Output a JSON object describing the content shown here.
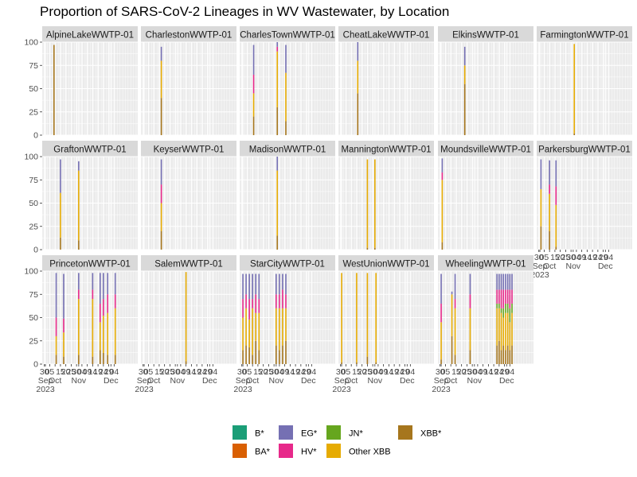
{
  "chart_data": {
    "type": "bar",
    "title": "Proportion of SARS-CoV-2 Lineages in WV Wastewater, by Location",
    "stacked": true,
    "faceted": true,
    "ylim": [
      0,
      100
    ],
    "y_ticks": [
      0,
      25,
      50,
      75,
      100
    ],
    "x_range": [
      "2023-09-28",
      "2023-12-26"
    ],
    "x_tick_labels": [
      {
        "date": "2023-09-30",
        "label": "30"
      },
      {
        "date": "2023-10-01",
        "label": "Sep\n2023"
      },
      {
        "date": "2023-10-05",
        "label": "05"
      },
      {
        "date": "2023-10-10",
        "label": "Oct"
      },
      {
        "date": "2023-10-15",
        "label": "15"
      },
      {
        "date": "2023-10-20",
        "label": "20"
      },
      {
        "date": "2023-10-25",
        "label": "25"
      },
      {
        "date": "2023-10-30",
        "label": "30"
      },
      {
        "date": "2023-11-01",
        "label": "Nov"
      },
      {
        "date": "2023-11-04",
        "label": "04"
      },
      {
        "date": "2023-11-09",
        "label": "09"
      },
      {
        "date": "2023-11-14",
        "label": "14"
      },
      {
        "date": "2023-11-19",
        "label": "19"
      },
      {
        "date": "2023-11-24",
        "label": "24"
      },
      {
        "date": "2023-11-29",
        "label": "29"
      },
      {
        "date": "2023-12-01",
        "label": "Dec"
      },
      {
        "date": "2023-12-04",
        "label": "04"
      }
    ],
    "legend_position": "bottom",
    "legend": [
      {
        "name": "B*",
        "color": "#1b9e77"
      },
      {
        "name": "BA*",
        "color": "#d95f02"
      },
      {
        "name": "EG*",
        "color": "#7570b3"
      },
      {
        "name": "HV*",
        "color": "#e7298a"
      },
      {
        "name": "JN*",
        "color": "#66a61e"
      },
      {
        "name": "Other XBB",
        "color": "#e6ab02"
      },
      {
        "name": "XBB*",
        "color": "#a6761d"
      }
    ],
    "facets": [
      {
        "name": "AlpineLakeWWTP-01",
        "bars": [
          {
            "date": "2023-10-09",
            "values": {
              "XBB*": 97
            }
          }
        ]
      },
      {
        "name": "CharlestonWWTP-01",
        "bars": [
          {
            "date": "2023-10-17",
            "values": {
              "XBB*": 40,
              "Other XBB": 40,
              "EG*": 15
            }
          }
        ]
      },
      {
        "name": "CharlesTownWWTP-01",
        "bars": [
          {
            "date": "2023-10-11",
            "values": {
              "XBB*": 20,
              "Other XBB": 25,
              "HV*": 20,
              "EG*": 32
            }
          },
          {
            "date": "2023-11-02",
            "values": {
              "XBB*": 30,
              "Other XBB": 60,
              "HV*": 5,
              "EG*": 5
            }
          },
          {
            "date": "2023-11-10",
            "values": {
              "XBB*": 15,
              "Other XBB": 52,
              "EG*": 30
            }
          }
        ]
      },
      {
        "name": "CheatLakeWWTP-01",
        "bars": [
          {
            "date": "2023-10-16",
            "values": {
              "XBB*": 45,
              "Other XBB": 35,
              "EG*": 20
            }
          }
        ]
      },
      {
        "name": "ElkinsWWTP-01",
        "bars": [
          {
            "date": "2023-10-23",
            "values": {
              "XBB*": 55,
              "Other XBB": 20,
              "EG*": 20
            }
          }
        ]
      },
      {
        "name": "FarmingtonWWTP-01",
        "bars": [
          {
            "date": "2023-11-02",
            "values": {
              "Other XBB": 96,
              "XBB*": 2
            }
          }
        ]
      },
      {
        "name": "GraftonWWTP-01",
        "bars": [
          {
            "date": "2023-10-15",
            "values": {
              "XBB*": 13,
              "Other XBB": 48,
              "EG*": 36
            }
          },
          {
            "date": "2023-11-01",
            "values": {
              "XBB*": 10,
              "Other XBB": 75,
              "EG*": 10
            }
          }
        ]
      },
      {
        "name": "KeyserWWTP-01",
        "bars": [
          {
            "date": "2023-10-17",
            "values": {
              "XBB*": 20,
              "Other XBB": 30,
              "HV*": 20,
              "EG*": 27
            }
          }
        ]
      },
      {
        "name": "MadisonWWTP-01",
        "bars": [
          {
            "date": "2023-11-02",
            "values": {
              "XBB*": 15,
              "Other XBB": 70,
              "EG*": 15
            }
          }
        ]
      },
      {
        "name": "ManningtonWWTP-01",
        "bars": [
          {
            "date": "2023-10-25",
            "values": {
              "Other XBB": 95,
              "XBB*": 2
            }
          },
          {
            "date": "2023-11-01",
            "values": {
              "Other XBB": 95,
              "XBB*": 2
            }
          }
        ]
      },
      {
        "name": "MoundsvilleWWTP-01",
        "bars": [
          {
            "date": "2023-10-02",
            "values": {
              "XBB*": 8,
              "Other XBB": 67,
              "HV*": 8,
              "EG*": 15
            }
          }
        ]
      },
      {
        "name": "ParkersburgWWTP-01",
        "bars": [
          {
            "date": "2023-10-02",
            "values": {
              "XBB*": 25,
              "Other XBB": 40,
              "EG*": 32
            }
          },
          {
            "date": "2023-10-10",
            "values": {
              "XBB*": 20,
              "Other XBB": 40,
              "HV*": 10,
              "EG*": 26
            }
          },
          {
            "date": "2023-10-16",
            "values": {
              "XBB*": 3,
              "Other XBB": 45,
              "HV*": 20,
              "EG*": 28
            }
          }
        ]
      },
      {
        "name": "PrincetonWWTP-01",
        "bars": [
          {
            "date": "2023-10-11",
            "values": {
              "XBB*": 10,
              "Other XBB": 20,
              "HV*": 20,
              "EG*": 48
            }
          },
          {
            "date": "2023-10-18",
            "values": {
              "XBB*": 8,
              "Other XBB": 26,
              "HV*": 15,
              "EG*": 48
            }
          },
          {
            "date": "2023-11-01",
            "values": {
              "XBB*": 10,
              "Other XBB": 60,
              "HV*": 10,
              "EG*": 18
            }
          },
          {
            "date": "2023-11-14",
            "values": {
              "XBB*": 8,
              "Other XBB": 62,
              "HV*": 10,
              "EG*": 18
            }
          },
          {
            "date": "2023-11-21",
            "values": {
              "XBB*": 15,
              "Other XBB": 30,
              "HV*": 20,
              "EG*": 33
            }
          },
          {
            "date": "2023-11-24",
            "values": {
              "XBB*": 12,
              "Other XBB": 40,
              "HV*": 18,
              "EG*": 28
            }
          },
          {
            "date": "2023-11-28",
            "values": {
              "XBB*": 10,
              "Other XBB": 45,
              "HV*": 20,
              "EG*": 23
            }
          },
          {
            "date": "2023-12-05",
            "values": {
              "XBB*": 10,
              "Other XBB": 50,
              "HV*": 15,
              "EG*": 23
            }
          }
        ]
      },
      {
        "name": "SalemWWTP-01",
        "bars": [
          {
            "date": "2023-11-09",
            "values": {
              "Other XBB": 96,
              "XBB*": 3
            }
          }
        ]
      },
      {
        "name": "StarCityWWTP-01",
        "bars": [
          {
            "date": "2023-10-01",
            "values": {
              "XBB*": 15,
              "Other XBB": 35,
              "HV*": 20,
              "EG*": 27
            }
          },
          {
            "date": "2023-10-04",
            "values": {
              "XBB*": 20,
              "Other XBB": 40,
              "HV*": 15,
              "EG*": 22
            }
          },
          {
            "date": "2023-10-07",
            "values": {
              "XBB*": 18,
              "Other XBB": 30,
              "HV*": 22,
              "EG*": 27
            }
          },
          {
            "date": "2023-10-10",
            "values": {
              "XBB*": 10,
              "Other XBB": 50,
              "HV*": 10,
              "EG*": 27
            }
          },
          {
            "date": "2023-10-13",
            "values": {
              "XBB*": 25,
              "Other XBB": 30,
              "HV*": 20,
              "EG*": 22
            }
          },
          {
            "date": "2023-10-16",
            "values": {
              "XBB*": 15,
              "Other XBB": 40,
              "HV*": 15,
              "EG*": 27
            }
          },
          {
            "date": "2023-11-01",
            "values": {
              "XBB*": 20,
              "Other XBB": 40,
              "HV*": 15,
              "EG*": 22
            }
          },
          {
            "date": "2023-11-04",
            "values": {
              "XBB*": 15,
              "Other XBB": 45,
              "HV*": 15,
              "EG*": 22
            }
          },
          {
            "date": "2023-11-07",
            "values": {
              "XBB*": 20,
              "Other XBB": 40,
              "HV*": 20,
              "EG*": 17
            }
          },
          {
            "date": "2023-11-10",
            "values": {
              "XBB*": 25,
              "Other XBB": 35,
              "HV*": 15,
              "EG*": 22
            }
          }
        ]
      },
      {
        "name": "WestUnionWWTP-01",
        "bars": [
          {
            "date": "2023-10-01",
            "values": {
              "Other XBB": 96,
              "XBB*": 2
            }
          },
          {
            "date": "2023-10-15",
            "values": {
              "Other XBB": 96,
              "XBB*": 2
            }
          },
          {
            "date": "2023-10-25",
            "values": {
              "Other XBB": 90,
              "XBB*": 8
            }
          },
          {
            "date": "2023-11-02",
            "values": {
              "Other XBB": 96,
              "XBB*": 2
            }
          }
        ]
      },
      {
        "name": "WheelingWWTP-01",
        "bars": [
          {
            "date": "2023-10-01",
            "values": {
              "XBB*": 5,
              "Other XBB": 40,
              "HV*": 20,
              "EG*": 32
            }
          },
          {
            "date": "2023-10-11",
            "values": {
              "XBB*": 30,
              "Other XBB": 45,
              "EG*": 3
            }
          },
          {
            "date": "2023-10-14",
            "values": {
              "XBB*": 10,
              "Other XBB": 50,
              "HV*": 10,
              "EG*": 27
            }
          },
          {
            "date": "2023-10-28",
            "values": {
              "XBB*": 15,
              "Other XBB": 45,
              "HV*": 15,
              "EG*": 22
            }
          },
          {
            "date": "2023-11-22",
            "values": {
              "XBB*": 20,
              "Other XBB": 40,
              "HV*": 15,
              "JN*": 5,
              "EG*": 17
            }
          },
          {
            "date": "2023-11-24",
            "values": {
              "XBB*": 25,
              "Other XBB": 35,
              "HV*": 15,
              "JN*": 5,
              "EG*": 17
            }
          },
          {
            "date": "2023-11-26",
            "values": {
              "XBB*": 15,
              "Other XBB": 40,
              "HV*": 20,
              "JN*": 5,
              "EG*": 17
            }
          },
          {
            "date": "2023-11-28",
            "values": {
              "XBB*": 20,
              "Other XBB": 30,
              "HV*": 20,
              "JN*": 10,
              "EG*": 17
            }
          },
          {
            "date": "2023-11-30",
            "values": {
              "XBB*": 15,
              "Other XBB": 40,
              "HV*": 15,
              "JN*": 10,
              "EG*": 17
            }
          },
          {
            "date": "2023-12-02",
            "values": {
              "XBB*": 20,
              "Other XBB": 35,
              "HV*": 15,
              "JN*": 10,
              "EG*": 17
            }
          },
          {
            "date": "2023-12-04",
            "values": {
              "XBB*": 15,
              "Other XBB": 30,
              "HV*": 20,
              "JN*": 15,
              "EG*": 17
            }
          },
          {
            "date": "2023-12-06",
            "values": {
              "XBB*": 20,
              "Other XBB": 35,
              "HV*": 15,
              "JN*": 10,
              "EG*": 17
            }
          }
        ]
      }
    ]
  }
}
